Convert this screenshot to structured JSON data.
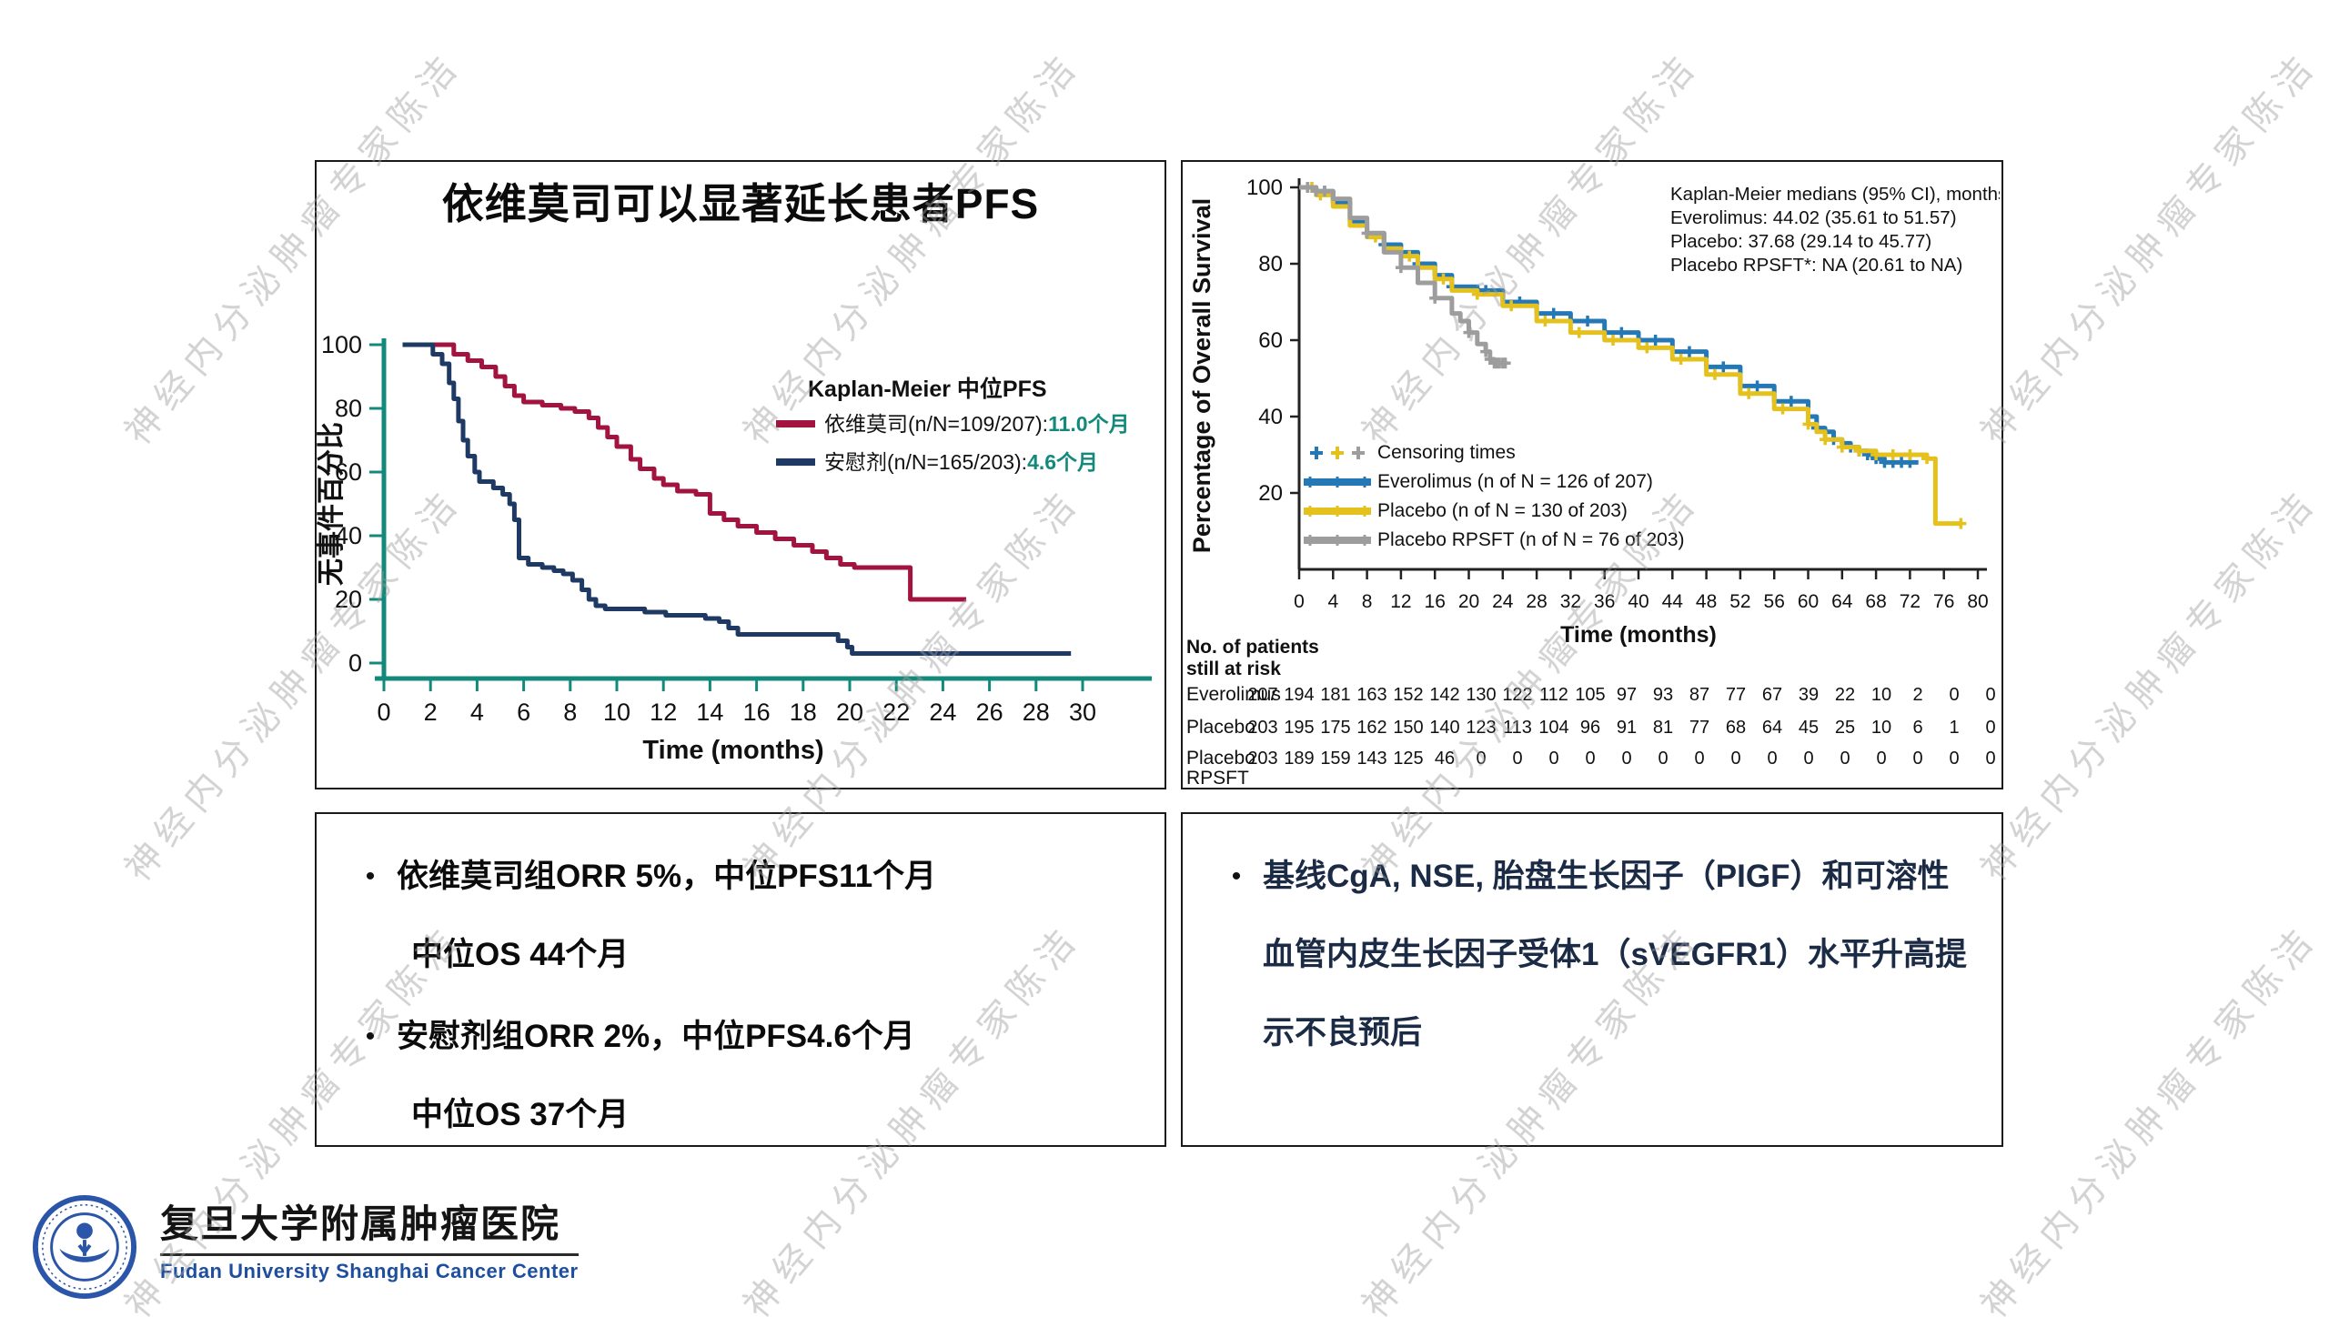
{
  "slide": {
    "watermark_text": "神经内分泌肿瘤专家陈洁",
    "background_color": "#ffffff"
  },
  "left_panel": {
    "title": "依维莫司可以显著延长患者PFS"
  },
  "bottom_left_box": {
    "bullets": [
      {
        "lines": [
          "依维莫司组ORR 5%，中位PFS11个月",
          "中位OS 44个月"
        ]
      },
      {
        "lines": [
          "安慰剂组ORR 2%，中位PFS4.6个月",
          "中位OS 37个月"
        ]
      }
    ]
  },
  "bottom_right_box": {
    "bullets": [
      {
        "lines": [
          "基线CgA, NSE, 胎盘生长因子（PIGF）和可溶性血管内皮生长因子受体1（sVEGFR1）水平升高提示不良预后"
        ]
      }
    ]
  },
  "logo": {
    "chinese_name": "复旦大学附属肿瘤医院",
    "english_name": "Fudan University Shanghai Cancer Center",
    "emblem_color": "#2a55a8",
    "english_color": "#1d4f9e"
  },
  "chart_data": [
    {
      "type": "line",
      "name": "pfs-kaplan-meier",
      "title": "依维莫司可以显著延长患者PFS",
      "xlabel": "Time (months)",
      "ylabel": "无事件百分比",
      "xlim": [
        0,
        30
      ],
      "xtick_step": 2,
      "ylim": [
        0,
        100
      ],
      "ytick_step": 20,
      "grid": false,
      "legend_position": "upper right",
      "axis_color": "#13897b",
      "value_color": "#13897b",
      "legend_title": "Kaplan-Meier 中位PFS",
      "series": [
        {
          "name": "依维莫司",
          "legend_label": "依维莫司(n/N=109/207):",
          "legend_value": "11.0个月",
          "color": "#a2143f",
          "points": [
            [
              0.8,
              100
            ],
            [
              2.6,
              100
            ],
            [
              3.0,
              97
            ],
            [
              3.6,
              95
            ],
            [
              4.2,
              93
            ],
            [
              4.8,
              90
            ],
            [
              5.2,
              87
            ],
            [
              5.6,
              84
            ],
            [
              6.0,
              82
            ],
            [
              6.8,
              81
            ],
            [
              7.6,
              80
            ],
            [
              8.2,
              79
            ],
            [
              8.8,
              77
            ],
            [
              9.2,
              74
            ],
            [
              9.6,
              71
            ],
            [
              10.0,
              68
            ],
            [
              10.6,
              64
            ],
            [
              11.0,
              61
            ],
            [
              11.6,
              58
            ],
            [
              12.0,
              56
            ],
            [
              12.6,
              54
            ],
            [
              13.4,
              53
            ],
            [
              14.0,
              47
            ],
            [
              14.6,
              45
            ],
            [
              15.2,
              43
            ],
            [
              16.0,
              41
            ],
            [
              16.8,
              39
            ],
            [
              17.6,
              37
            ],
            [
              18.4,
              35
            ],
            [
              19.0,
              33
            ],
            [
              19.6,
              31
            ],
            [
              20.2,
              30
            ],
            [
              22.4,
              30
            ],
            [
              22.6,
              20
            ],
            [
              25.0,
              20
            ]
          ]
        },
        {
          "name": "安慰剂",
          "legend_label": "安慰剂(n/N=165/203):",
          "legend_value": "4.6个月",
          "color": "#1e3a64",
          "points": [
            [
              0.8,
              100
            ],
            [
              1.9,
              100
            ],
            [
              2.1,
              97
            ],
            [
              2.5,
              94
            ],
            [
              2.8,
              88
            ],
            [
              3.0,
              83
            ],
            [
              3.2,
              76
            ],
            [
              3.4,
              70
            ],
            [
              3.6,
              65
            ],
            [
              3.9,
              60
            ],
            [
              4.1,
              57
            ],
            [
              4.7,
              55
            ],
            [
              5.1,
              53
            ],
            [
              5.4,
              50
            ],
            [
              5.6,
              45
            ],
            [
              5.8,
              33
            ],
            [
              6.2,
              31
            ],
            [
              6.8,
              30
            ],
            [
              7.3,
              29
            ],
            [
              7.7,
              28
            ],
            [
              8.1,
              26
            ],
            [
              8.5,
              23
            ],
            [
              8.8,
              20
            ],
            [
              9.1,
              18
            ],
            [
              9.5,
              17
            ],
            [
              10.5,
              17
            ],
            [
              11.2,
              16
            ],
            [
              12.1,
              15
            ],
            [
              13.0,
              15
            ],
            [
              13.8,
              14
            ],
            [
              14.4,
              13
            ],
            [
              14.8,
              11
            ],
            [
              15.2,
              9
            ],
            [
              16.5,
              9
            ],
            [
              18.9,
              9
            ],
            [
              19.5,
              7
            ],
            [
              19.9,
              5
            ],
            [
              20.1,
              3
            ],
            [
              24.0,
              3
            ],
            [
              29.5,
              3
            ]
          ]
        }
      ]
    },
    {
      "type": "line",
      "name": "os-kaplan-meier",
      "xlabel": "Time (months)",
      "ylabel": "Percentage of Overall Survival",
      "xlim": [
        0,
        80
      ],
      "xtick_step": 4,
      "ylim": [
        0,
        100
      ],
      "ytick_step": 20,
      "ytick_min": 20,
      "grid": false,
      "legend_position": "lower left",
      "axis_color": "#222222",
      "annotation": [
        "Kaplan-Meier medians (95% CI), months",
        "Everolimus: 44.02 (35.61 to 51.57)",
        "Placebo: 37.68 (29.14 to 45.77)",
        "Placebo RPSFT*: NA (20.61 to NA)"
      ],
      "legend_censor_label": "Censoring times",
      "series": [
        {
          "name": "Everolimus",
          "legend_label": "Everolimus (n of N = 126 of 207)",
          "color": "#2478b6",
          "points": [
            [
              0,
              100
            ],
            [
              2,
              99
            ],
            [
              4,
              96
            ],
            [
              6,
              91
            ],
            [
              8,
              88
            ],
            [
              10,
              85
            ],
            [
              12,
              83
            ],
            [
              14,
              80
            ],
            [
              16,
              77
            ],
            [
              18,
              74
            ],
            [
              21,
              73
            ],
            [
              24,
              70
            ],
            [
              28,
              67
            ],
            [
              32,
              65
            ],
            [
              36,
              62
            ],
            [
              40,
              60
            ],
            [
              44,
              57
            ],
            [
              48,
              53
            ],
            [
              52,
              48
            ],
            [
              56,
              44
            ],
            [
              60,
              40
            ],
            [
              61,
              37
            ],
            [
              62,
              36
            ],
            [
              63,
              34
            ],
            [
              64,
              33
            ],
            [
              65,
              32
            ],
            [
              66,
              31
            ],
            [
              67,
              30
            ],
            [
              68,
              29
            ],
            [
              69,
              28
            ],
            [
              73,
              28
            ]
          ],
          "censor_x": [
            1,
            2,
            3,
            10,
            14,
            18,
            22,
            26,
            30,
            34,
            38,
            42,
            46,
            50,
            54,
            58,
            61,
            63,
            65,
            66,
            67,
            68,
            69,
            70,
            71,
            72
          ]
        },
        {
          "name": "Placebo",
          "legend_label": "Placebo (n of N = 130 of 203)",
          "color": "#e5c11d",
          "points": [
            [
              0,
              100
            ],
            [
              2,
              98
            ],
            [
              4,
              95
            ],
            [
              6,
              90
            ],
            [
              8,
              87
            ],
            [
              10,
              84
            ],
            [
              12,
              82
            ],
            [
              14,
              79
            ],
            [
              16,
              76
            ],
            [
              18,
              73
            ],
            [
              21,
              72
            ],
            [
              24,
              69
            ],
            [
              28,
              65
            ],
            [
              32,
              62
            ],
            [
              36,
              60
            ],
            [
              40,
              58
            ],
            [
              44,
              55
            ],
            [
              48,
              51
            ],
            [
              52,
              46
            ],
            [
              56,
              42
            ],
            [
              60,
              38
            ],
            [
              61,
              36
            ],
            [
              62,
              34
            ],
            [
              64,
              32
            ],
            [
              66,
              31
            ],
            [
              68,
              30
            ],
            [
              70,
              30
            ],
            [
              74,
              29
            ],
            [
              75,
              12
            ],
            [
              78,
              12
            ]
          ],
          "censor_x": [
            1.5,
            2.5,
            9,
            13,
            17,
            21,
            25,
            29,
            33,
            37,
            41,
            45,
            49,
            53,
            57,
            60,
            62,
            64,
            66,
            68,
            70,
            72,
            74,
            78
          ]
        },
        {
          "name": "Placebo RPSFT",
          "legend_label": "Placebo RPSFT (n of N = 76 of 203)",
          "color": "#9d9d9d",
          "points": [
            [
              0,
              100
            ],
            [
              2,
              99
            ],
            [
              4,
              97
            ],
            [
              6,
              92
            ],
            [
              8,
              88
            ],
            [
              10,
              83
            ],
            [
              12,
              79
            ],
            [
              14,
              75
            ],
            [
              16,
              71
            ],
            [
              18,
              67
            ],
            [
              19,
              65
            ],
            [
              20,
              62
            ],
            [
              21,
              59
            ],
            [
              22,
              57
            ],
            [
              22.5,
              55
            ],
            [
              23,
              54
            ],
            [
              24.5,
              54
            ]
          ],
          "censor_x": [
            1,
            2,
            3,
            8,
            12,
            16,
            20,
            22,
            22.5,
            23,
            23.3,
            23.6,
            24,
            24.3
          ]
        }
      ],
      "risk_table": {
        "title_lines": [
          "No. of patients",
          "still at risk"
        ],
        "times": [
          0,
          4,
          8,
          12,
          16,
          20,
          24,
          28,
          32,
          36,
          40,
          44,
          48,
          52,
          56,
          60,
          64,
          68,
          72,
          76,
          80
        ],
        "rows": [
          {
            "label": "Everolimus",
            "counts": [
              207,
              194,
              181,
              163,
              152,
              142,
              130,
              122,
              112,
              105,
              97,
              93,
              87,
              77,
              67,
              39,
              22,
              10,
              2,
              0,
              0
            ]
          },
          {
            "label": "Placebo",
            "counts": [
              203,
              195,
              175,
              162,
              150,
              140,
              123,
              113,
              104,
              96,
              91,
              81,
              77,
              68,
              64,
              45,
              25,
              10,
              6,
              1,
              0
            ]
          },
          {
            "label": "Placebo",
            "label2": "RPSFT",
            "counts": [
              203,
              189,
              159,
              143,
              125,
              46,
              0,
              0,
              0,
              0,
              0,
              0,
              0,
              0,
              0,
              0,
              0,
              0,
              0,
              0,
              0
            ]
          }
        ]
      }
    }
  ]
}
